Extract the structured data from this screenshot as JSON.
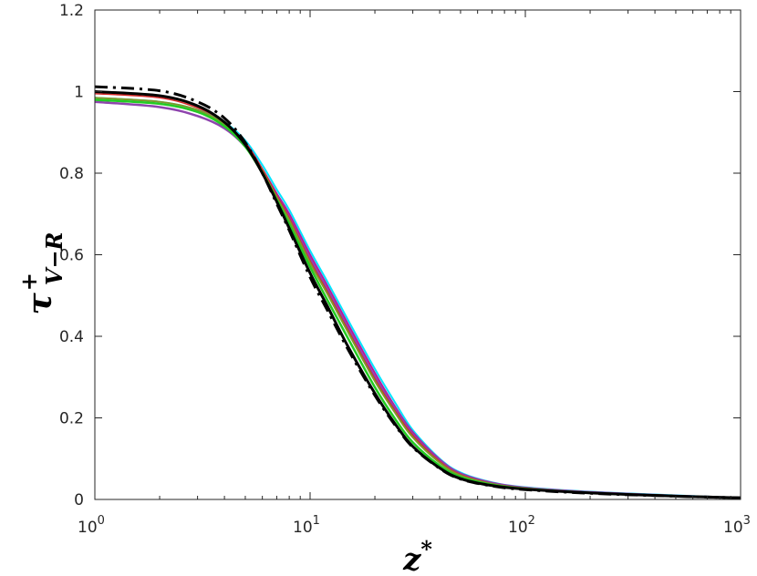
{
  "chart_data": {
    "type": "line",
    "x_scale": "log",
    "xlim": [
      1,
      1000
    ],
    "ylim": [
      0,
      1.2
    ],
    "grid": false,
    "legend": "none",
    "xlabel": {
      "base": "z",
      "sup": "*"
    },
    "ylabel": {
      "base": "τ",
      "sup": "+",
      "sub": "V−R"
    },
    "x_ticks": [
      {
        "value": 1,
        "base": "10",
        "exp": "0"
      },
      {
        "value": 10,
        "base": "10",
        "exp": "1"
      },
      {
        "value": 100,
        "base": "10",
        "exp": "2"
      },
      {
        "value": 1000,
        "base": "10",
        "exp": "3"
      }
    ],
    "y_ticks": [
      {
        "value": 0,
        "label": "0"
      },
      {
        "value": 0.2,
        "label": "0.2"
      },
      {
        "value": 0.4,
        "label": "0.4"
      },
      {
        "value": 0.6,
        "label": "0.6"
      },
      {
        "value": 0.8,
        "label": "0.8"
      },
      {
        "value": 1.0,
        "label": "1"
      },
      {
        "value": 1.2,
        "label": "1.2"
      }
    ],
    "x": [
      1,
      2,
      3,
      4,
      5,
      6,
      7,
      8,
      10,
      12,
      15,
      20,
      25,
      30,
      40,
      50,
      70,
      100,
      200,
      500,
      1000
    ],
    "series": [
      {
        "color": "#00e5ff",
        "dash": "solid",
        "width": 2,
        "values": [
          0.985,
          0.975,
          0.955,
          0.925,
          0.88,
          0.82,
          0.76,
          0.71,
          0.61,
          0.535,
          0.44,
          0.32,
          0.235,
          0.17,
          0.1,
          0.066,
          0.042,
          0.03,
          0.019,
          0.01,
          0.004
        ]
      },
      {
        "color": "#b5179e",
        "dash": "solid",
        "width": 2,
        "values": [
          0.98,
          0.97,
          0.95,
          0.92,
          0.875,
          0.81,
          0.75,
          0.7,
          0.6,
          0.525,
          0.43,
          0.31,
          0.225,
          0.165,
          0.098,
          0.064,
          0.041,
          0.029,
          0.018,
          0.009,
          0.004
        ]
      },
      {
        "color": "#8e44ad",
        "dash": "solid",
        "width": 2.5,
        "values": [
          0.975,
          0.962,
          0.94,
          0.91,
          0.865,
          0.805,
          0.745,
          0.69,
          0.59,
          0.515,
          0.42,
          0.3,
          0.22,
          0.16,
          0.095,
          0.062,
          0.04,
          0.028,
          0.018,
          0.009,
          0.004
        ]
      },
      {
        "color": "#d62728",
        "dash": "solid",
        "width": 1.5,
        "values": [
          0.995,
          0.985,
          0.96,
          0.925,
          0.875,
          0.81,
          0.745,
          0.69,
          0.585,
          0.51,
          0.415,
          0.295,
          0.215,
          0.157,
          0.093,
          0.061,
          0.039,
          0.028,
          0.017,
          0.009,
          0.004
        ]
      },
      {
        "color": "#7f9a2b",
        "dash": "solid",
        "width": 2,
        "values": [
          0.985,
          0.975,
          0.955,
          0.92,
          0.87,
          0.805,
          0.74,
          0.685,
          0.58,
          0.505,
          0.41,
          0.29,
          0.21,
          0.152,
          0.09,
          0.059,
          0.038,
          0.027,
          0.017,
          0.009,
          0.004
        ]
      },
      {
        "color": "#22cc22",
        "dash": "solid",
        "width": 2.5,
        "values": [
          0.98,
          0.97,
          0.95,
          0.915,
          0.865,
          0.8,
          0.735,
          0.675,
          0.57,
          0.49,
          0.395,
          0.275,
          0.195,
          0.14,
          0.083,
          0.055,
          0.036,
          0.026,
          0.016,
          0.008,
          0.004
        ]
      },
      {
        "color": "#000000",
        "dash": "solid",
        "width": 3,
        "values": [
          1.0,
          0.99,
          0.965,
          0.925,
          0.87,
          0.8,
          0.73,
          0.665,
          0.555,
          0.475,
          0.375,
          0.26,
          0.183,
          0.13,
          0.077,
          0.051,
          0.034,
          0.025,
          0.016,
          0.008,
          0.004
        ]
      },
      {
        "color": "#000000",
        "dash": "dashdot",
        "width": 3,
        "values": [
          1.012,
          1.002,
          0.975,
          0.935,
          0.875,
          0.8,
          0.725,
          0.66,
          0.545,
          0.465,
          0.368,
          0.255,
          0.18,
          0.128,
          0.076,
          0.05,
          0.033,
          0.024,
          0.015,
          0.008,
          0.004
        ]
      }
    ]
  }
}
